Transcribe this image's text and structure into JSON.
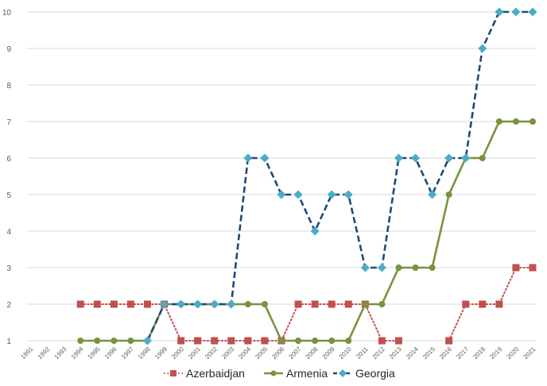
{
  "chart_data": {
    "type": "line",
    "title": "",
    "xlabel": "",
    "ylabel": "",
    "ylim": [
      1,
      10
    ],
    "grid": true,
    "legend_position": "bottom",
    "x": [
      "1991",
      "1992",
      "1993",
      "1994",
      "1995",
      "1996",
      "1997",
      "1998",
      "1999",
      "2000",
      "2001",
      "2002",
      "2003",
      "2004",
      "2005",
      "2006",
      "2007",
      "2008",
      "2009",
      "2010",
      "2011",
      "2012",
      "2013",
      "2014",
      "2015",
      "2016",
      "2017",
      "2018",
      "2019",
      "2020",
      "2021"
    ],
    "y_ticks": [
      "1",
      "2",
      "3",
      "4",
      "5",
      "6",
      "7",
      "8",
      "9",
      "10"
    ],
    "series": [
      {
        "name": "Azerbaidjan",
        "color": "#c0504d",
        "marker": "square",
        "line_style": "dotted",
        "values": [
          null,
          null,
          null,
          2,
          2,
          2,
          2,
          2,
          2,
          1,
          1,
          1,
          1,
          1,
          1,
          1,
          2,
          2,
          2,
          2,
          2,
          1,
          1,
          null,
          null,
          1,
          2,
          2,
          2,
          3,
          3
        ]
      },
      {
        "name": "Armenia",
        "color": "#77933c",
        "marker": "circle",
        "line_style": "solid",
        "values": [
          null,
          null,
          null,
          1,
          1,
          1,
          1,
          1,
          2,
          2,
          2,
          2,
          2,
          2,
          2,
          1,
          1,
          1,
          1,
          1,
          2,
          2,
          3,
          3,
          3,
          5,
          6,
          6,
          7,
          7,
          7
        ]
      },
      {
        "name": "Georgia",
        "color": "#4bacc6",
        "line_color": "#1f497d",
        "marker": "diamond",
        "line_style": "dashed",
        "values": [
          null,
          null,
          null,
          null,
          null,
          null,
          null,
          1,
          2,
          2,
          2,
          2,
          2,
          6,
          6,
          5,
          5,
          4,
          5,
          5,
          3,
          3,
          6,
          6,
          5,
          6,
          6,
          9,
          10,
          10,
          10
        ]
      }
    ]
  }
}
